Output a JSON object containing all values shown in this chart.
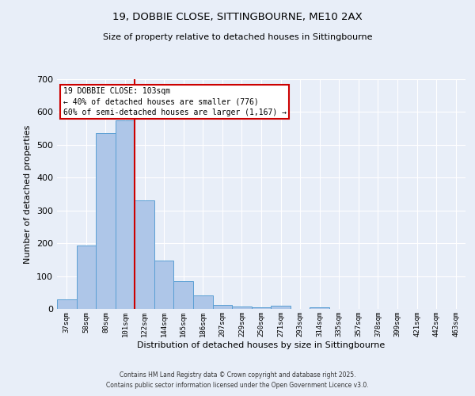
{
  "title1": "19, DOBBIE CLOSE, SITTINGBOURNE, ME10 2AX",
  "title2": "Size of property relative to detached houses in Sittingbourne",
  "xlabel": "Distribution of detached houses by size in Sittingbourne",
  "ylabel": "Number of detached properties",
  "categories": [
    "37sqm",
    "58sqm",
    "80sqm",
    "101sqm",
    "122sqm",
    "144sqm",
    "165sqm",
    "186sqm",
    "207sqm",
    "229sqm",
    "250sqm",
    "271sqm",
    "293sqm",
    "314sqm",
    "335sqm",
    "357sqm",
    "378sqm",
    "399sqm",
    "421sqm",
    "442sqm",
    "463sqm"
  ],
  "values": [
    30,
    193,
    535,
    575,
    330,
    148,
    85,
    40,
    12,
    8,
    4,
    10,
    0,
    4,
    0,
    0,
    0,
    0,
    0,
    0,
    0
  ],
  "bar_color": "#aec6e8",
  "bar_edge_color": "#5a9fd4",
  "property_line_color": "#cc0000",
  "annotation_line1": "19 DOBBIE CLOSE: 103sqm",
  "annotation_line2": "← 40% of detached houses are smaller (776)",
  "annotation_line3": "60% of semi-detached houses are larger (1,167) →",
  "annotation_box_color": "#cc0000",
  "annotation_bg": "#ffffff",
  "ylim": [
    0,
    700
  ],
  "yticks": [
    0,
    100,
    200,
    300,
    400,
    500,
    600,
    700
  ],
  "background_color": "#e8eef8",
  "grid_color": "#ffffff",
  "footer1": "Contains HM Land Registry data © Crown copyright and database right 2025.",
  "footer2": "Contains public sector information licensed under the Open Government Licence v3.0."
}
